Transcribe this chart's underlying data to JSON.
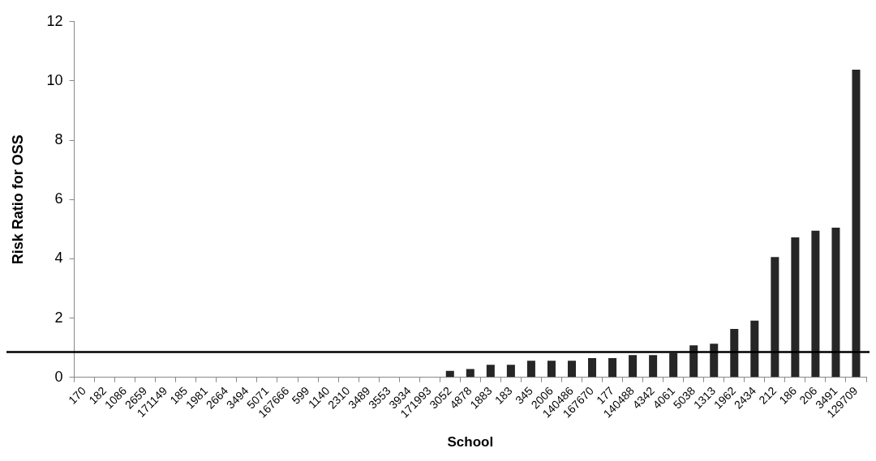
{
  "chart_data": {
    "type": "bar",
    "xlabel": "School",
    "ylabel": "Risk Ratio for OSS",
    "categories": [
      "170",
      "182",
      "1086",
      "2659",
      "171149",
      "185",
      "1981",
      "2664",
      "3494",
      "5071",
      "167666",
      "599",
      "1140",
      "2310",
      "3489",
      "3553",
      "3934",
      "171993",
      "3052",
      "4878",
      "1883",
      "183",
      "345",
      "2006",
      "140486",
      "167670",
      "177",
      "140488",
      "4342",
      "4061",
      "5038",
      "1313",
      "1962",
      "2434",
      "212",
      "186",
      "206",
      "3491",
      "129709"
    ],
    "values": [
      0,
      0,
      0,
      0,
      0,
      0,
      0,
      0,
      0,
      0,
      0,
      0,
      0,
      0,
      0,
      0,
      0,
      0,
      0.22,
      0.28,
      0.42,
      0.42,
      0.56,
      0.56,
      0.56,
      0.65,
      0.65,
      0.75,
      0.75,
      0.82,
      1.08,
      1.13,
      1.63,
      1.91,
      4.06,
      4.72,
      4.95,
      5.05,
      10.38
    ],
    "color": "#262626",
    "ylim": [
      0,
      12
    ],
    "yticks": [
      0,
      2,
      4,
      6,
      8,
      10,
      12
    ],
    "grid": false,
    "legend": false,
    "ref_lines": [
      {
        "axis": "y",
        "value": 0.85,
        "color": "#000000"
      }
    ]
  }
}
